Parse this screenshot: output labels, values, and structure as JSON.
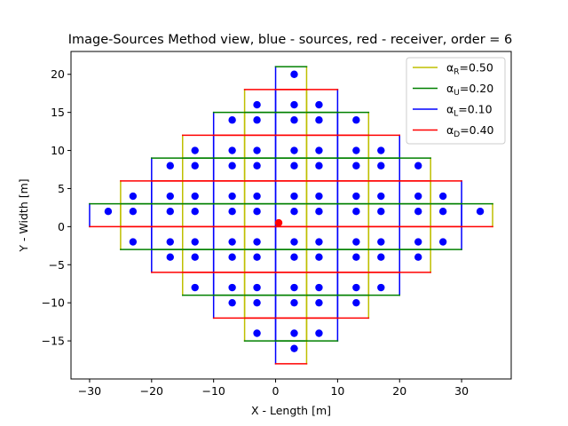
{
  "chart_data": {
    "type": "scatter",
    "title": "Image-Sources Method view, blue - sources, red - receiver, order = 6",
    "xlabel": "X - Length [m]",
    "ylabel": "Y - Width [m]",
    "xlim": [
      -33,
      38
    ],
    "ylim": [
      -20,
      23
    ],
    "xticks": [
      -30,
      -20,
      -10,
      0,
      10,
      20,
      30
    ],
    "yticks": [
      -15,
      -10,
      -5,
      0,
      5,
      10,
      15,
      20
    ],
    "grid": false,
    "legend_position": "top-right",
    "legend": [
      {
        "sym": "α",
        "sub": "R",
        "val": "=0.50",
        "color": "#bfbf00"
      },
      {
        "sym": "α",
        "sub": "U",
        "val": "=0.20",
        "color": "#008000"
      },
      {
        "sym": "α",
        "sub": "L",
        "val": "=0.10",
        "color": "#0000ff"
      },
      {
        "sym": "α",
        "sub": "D",
        "val": "=0.40",
        "color": "#ff0000"
      }
    ],
    "room": {
      "width": 5,
      "height": 3
    },
    "colors": {
      "right": "#bfbf00",
      "up": "#008000",
      "left": "#0000ff",
      "down": "#ff0000",
      "sources": "#0000ff",
      "receiver": "#ff0000"
    },
    "receiver": [
      0.5,
      0.5
    ],
    "sources": [
      [
        3,
        20
      ],
      [
        -3,
        16
      ],
      [
        3,
        16
      ],
      [
        7,
        16
      ],
      [
        -7,
        14
      ],
      [
        -3,
        14
      ],
      [
        3,
        14
      ],
      [
        7,
        14
      ],
      [
        13,
        14
      ],
      [
        -13,
        10
      ],
      [
        -7,
        10
      ],
      [
        -3,
        10
      ],
      [
        3,
        10
      ],
      [
        7,
        10
      ],
      [
        13,
        10
      ],
      [
        17,
        10
      ],
      [
        -17,
        8
      ],
      [
        -13,
        8
      ],
      [
        -7,
        8
      ],
      [
        -3,
        8
      ],
      [
        3,
        8
      ],
      [
        7,
        8
      ],
      [
        13,
        8
      ],
      [
        17,
        8
      ],
      [
        23,
        8
      ],
      [
        -23,
        4
      ],
      [
        -17,
        4
      ],
      [
        -13,
        4
      ],
      [
        -7,
        4
      ],
      [
        -3,
        4
      ],
      [
        3,
        4
      ],
      [
        7,
        4
      ],
      [
        13,
        4
      ],
      [
        17,
        4
      ],
      [
        23,
        4
      ],
      [
        27,
        4
      ],
      [
        -27,
        2
      ],
      [
        -23,
        2
      ],
      [
        -17,
        2
      ],
      [
        -13,
        2
      ],
      [
        -7,
        2
      ],
      [
        -3,
        2
      ],
      [
        3,
        2
      ],
      [
        7,
        2
      ],
      [
        13,
        2
      ],
      [
        17,
        2
      ],
      [
        23,
        2
      ],
      [
        27,
        2
      ],
      [
        33,
        2
      ],
      [
        -23,
        -2
      ],
      [
        -17,
        -2
      ],
      [
        -13,
        -2
      ],
      [
        -7,
        -2
      ],
      [
        -3,
        -2
      ],
      [
        3,
        -2
      ],
      [
        7,
        -2
      ],
      [
        13,
        -2
      ],
      [
        17,
        -2
      ],
      [
        23,
        -2
      ],
      [
        27,
        -2
      ],
      [
        -17,
        -4
      ],
      [
        -13,
        -4
      ],
      [
        -7,
        -4
      ],
      [
        -3,
        -4
      ],
      [
        3,
        -4
      ],
      [
        7,
        -4
      ],
      [
        13,
        -4
      ],
      [
        17,
        -4
      ],
      [
        23,
        -4
      ],
      [
        -13,
        -8
      ],
      [
        -7,
        -8
      ],
      [
        -3,
        -8
      ],
      [
        3,
        -8
      ],
      [
        7,
        -8
      ],
      [
        13,
        -8
      ],
      [
        17,
        -8
      ],
      [
        -7,
        -10
      ],
      [
        -3,
        -10
      ],
      [
        3,
        -10
      ],
      [
        7,
        -10
      ],
      [
        13,
        -10
      ],
      [
        -3,
        -14
      ],
      [
        3,
        -14
      ],
      [
        7,
        -14
      ],
      [
        3,
        -16
      ]
    ]
  }
}
